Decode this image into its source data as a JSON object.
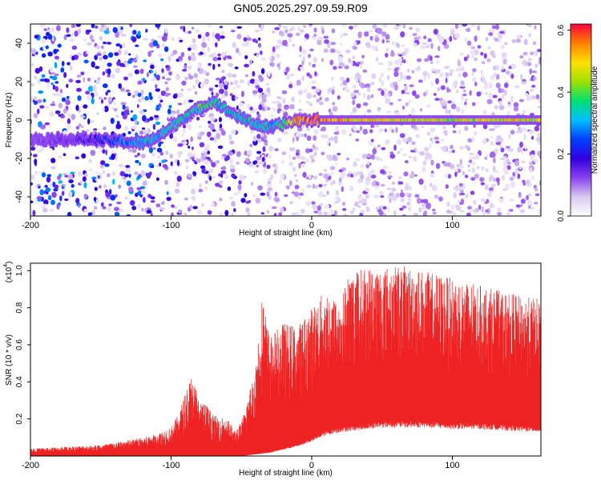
{
  "title": "GN05.2025.297.09.59.R09",
  "chart_data": [
    {
      "type": "heatmap",
      "title": "GN05.2025.297.09.59.R09",
      "xlabel": "Height of straight line (km)",
      "ylabel": "Frequency (Hz)",
      "xlim": [
        -200,
        163
      ],
      "ylim": [
        -50,
        50
      ],
      "xticks": [
        -200,
        -100,
        0,
        100
      ],
      "yticks": [
        -40,
        -20,
        0,
        20,
        40
      ],
      "colorbar": {
        "label": "Normalized spectral amplitude",
        "range": [
          0.0,
          0.62
        ],
        "ticks": [
          "0.0",
          "0.2",
          "0.4",
          "0.6"
        ],
        "colormap": [
          "#ffffff",
          "#d8c8f0",
          "#8a40f0",
          "#3000e0",
          "#0040ff",
          "#00c0ff",
          "#00e070",
          "#a0e000",
          "#ffe000",
          "#ff8000",
          "#ff0040"
        ]
      },
      "ridge": {
        "x": [
          -200,
          -160,
          -140,
          -120,
          -110,
          -100,
          -90,
          -80,
          -70,
          -60,
          -50,
          -40,
          -30,
          -20,
          -10,
          0,
          50,
          100,
          163
        ],
        "freq": [
          -10,
          -10,
          -11,
          -12,
          -9,
          -4,
          2,
          6,
          10,
          5,
          1,
          -2,
          -4,
          -2,
          0,
          0,
          0,
          0,
          0
        ],
        "amplitude": [
          0.12,
          0.16,
          0.26,
          0.32,
          0.34,
          0.36,
          0.34,
          0.38,
          0.36,
          0.33,
          0.34,
          0.36,
          0.33,
          0.38,
          0.55,
          0.58,
          0.5,
          0.48,
          0.5
        ]
      }
    },
    {
      "type": "line",
      "xlabel": "Height of straight line (km)",
      "ylabel": "SNR (10 * v/v)",
      "scale_label": "(x10",
      "scale_exp": "4",
      "xlim": [
        -200,
        163
      ],
      "ylim": [
        0,
        1.04
      ],
      "xticks": [
        -200,
        -100,
        0,
        100
      ],
      "yticks": [
        0.2,
        0.4,
        0.6,
        0.8,
        1.0
      ],
      "ytick_labels": [
        "0.2",
        "0.4",
        "0.6",
        "0.8",
        "1.0"
      ],
      "color": "#ee2222",
      "upper_envelope": {
        "x": [
          -200,
          -150,
          -120,
          -110,
          -100,
          -95,
          -90,
          -85,
          -80,
          -75,
          -70,
          -60,
          -55,
          -50,
          -40,
          -35,
          -30,
          -20,
          -10,
          0,
          10,
          20,
          25,
          30,
          40,
          50,
          60,
          70,
          80,
          90,
          100,
          110,
          120,
          130,
          140,
          150,
          163
        ],
        "y": [
          0.04,
          0.06,
          0.1,
          0.12,
          0.16,
          0.22,
          0.34,
          0.44,
          0.3,
          0.28,
          0.22,
          0.2,
          0.14,
          0.18,
          0.48,
          0.88,
          0.64,
          0.72,
          0.7,
          0.8,
          0.9,
          0.82,
          0.96,
          1.0,
          1.02,
          1.02,
          1.03,
          1.02,
          1.0,
          0.98,
          0.96,
          0.94,
          0.92,
          0.9,
          0.88,
          0.86,
          0.85
        ]
      },
      "lower_envelope": {
        "x": [
          -200,
          -50,
          -30,
          -20,
          -10,
          0,
          10,
          20,
          30,
          40,
          50,
          60,
          80,
          100,
          120,
          140,
          163
        ],
        "y": [
          0.0,
          0.0,
          0.02,
          0.04,
          0.06,
          0.09,
          0.13,
          0.15,
          0.16,
          0.17,
          0.18,
          0.18,
          0.18,
          0.17,
          0.17,
          0.16,
          0.15
        ]
      }
    }
  ]
}
